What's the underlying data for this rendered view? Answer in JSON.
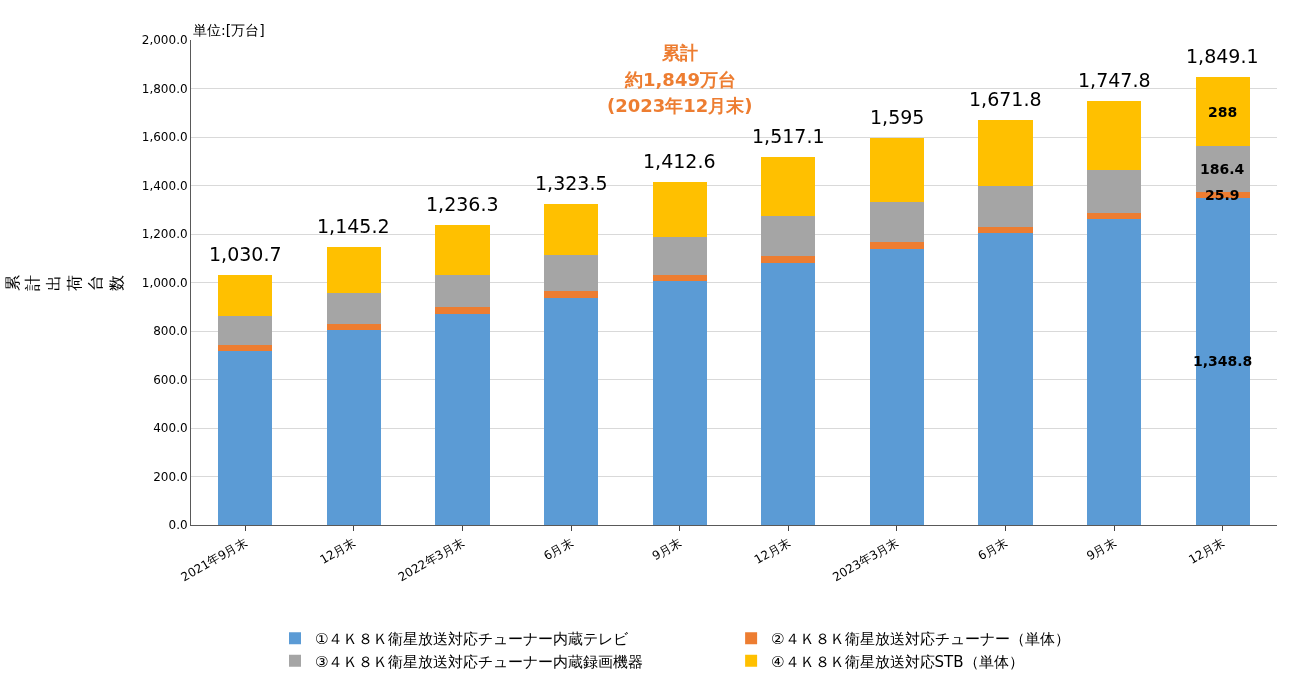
{
  "chart_data": {
    "type": "bar",
    "stacked": true,
    "ylabel": "累計出荷台数",
    "categories": [
      "2021年9月末",
      "12月末",
      "2022年3月末",
      "6月末",
      "9月末",
      "12月末",
      "2023年3月末",
      "6月末",
      "9月末",
      "12月末"
    ],
    "series": [
      {
        "name": "①４Ｋ８Ｋ衛星放送対応チューナー内蔵テレビ",
        "color": "#5b9bd5",
        "values": [
          718,
          803,
          872,
          938,
          1008,
          1081,
          1139,
          1203,
          1263,
          1348.8
        ],
        "value_labels": [
          null,
          null,
          null,
          null,
          null,
          null,
          null,
          null,
          null,
          "1,348.8"
        ]
      },
      {
        "name": "②４Ｋ８Ｋ衛星放送対応チューナー（単体）",
        "color": "#ed7d31",
        "values": [
          25,
          25,
          26,
          26,
          24,
          27,
          27,
          26,
          25,
          25.9
        ],
        "value_labels": [
          null,
          null,
          null,
          null,
          null,
          null,
          null,
          null,
          null,
          "25.9"
        ]
      },
      {
        "name": "③４Ｋ８Ｋ衛星放送対応チューナー内蔵録画機器",
        "color": "#a5a5a5",
        "values": [
          118,
          130,
          135,
          148,
          157,
          166,
          168,
          171,
          177,
          186.4
        ],
        "value_labels": [
          null,
          null,
          null,
          null,
          null,
          null,
          null,
          null,
          null,
          "186.4"
        ]
      },
      {
        "name": "④４Ｋ８Ｋ衛星放送対応STB（単体）",
        "color": "#ffc000",
        "values": [
          169.7,
          187.2,
          203.3,
          211.5,
          223.6,
          243.1,
          261,
          271.8,
          282.8,
          288
        ],
        "value_labels": [
          null,
          null,
          null,
          null,
          null,
          null,
          null,
          null,
          null,
          "288"
        ]
      }
    ],
    "totals": [
      "1,030.7",
      "1,145.2",
      "1,236.3",
      "1,323.5",
      "1,412.6",
      "1,517.1",
      "1,595",
      "1,671.8",
      "1,747.8",
      "1,849.1"
    ],
    "ylim": [
      0,
      2000
    ],
    "yticks": [
      {
        "value": 0,
        "label": "0.0"
      },
      {
        "value": 200,
        "label": "200.0"
      },
      {
        "value": 400,
        "label": "400.0"
      },
      {
        "value": 600,
        "label": "600.0"
      },
      {
        "value": 800,
        "label": "800.0"
      },
      {
        "value": 1000,
        "label": "1,000.0"
      },
      {
        "value": 1200,
        "label": "1,200.0"
      },
      {
        "value": 1400,
        "label": "1,400.0"
      },
      {
        "value": 1600,
        "label": "1,600.0"
      },
      {
        "value": 1800,
        "label": "1,800.0"
      },
      {
        "value": 2000,
        "label": "2,000.0"
      }
    ],
    "grid": "y",
    "legend": "bottom",
    "annotations": [
      "単位:[万台]",
      "累計",
      "約1,849万台",
      "(2023年12月末)"
    ]
  }
}
